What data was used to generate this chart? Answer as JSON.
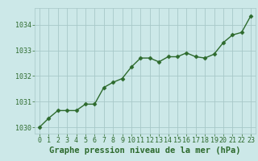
{
  "x": [
    0,
    1,
    2,
    3,
    4,
    5,
    6,
    7,
    8,
    9,
    10,
    11,
    12,
    13,
    14,
    15,
    16,
    17,
    18,
    19,
    20,
    21,
    22,
    23
  ],
  "y": [
    1030.0,
    1030.35,
    1030.65,
    1030.65,
    1030.65,
    1030.9,
    1030.9,
    1031.55,
    1031.75,
    1031.9,
    1032.35,
    1032.7,
    1032.7,
    1032.55,
    1032.75,
    1032.75,
    1032.9,
    1032.75,
    1032.7,
    1032.85,
    1033.3,
    1033.6,
    1033.7,
    1034.35
  ],
  "xlim": [
    -0.5,
    23.5
  ],
  "ylim": [
    1029.75,
    1034.65
  ],
  "yticks": [
    1030,
    1031,
    1032,
    1033,
    1034
  ],
  "xticks": [
    0,
    1,
    2,
    3,
    4,
    5,
    6,
    7,
    8,
    9,
    10,
    11,
    12,
    13,
    14,
    15,
    16,
    17,
    18,
    19,
    20,
    21,
    22,
    23
  ],
  "xlabel": "Graphe pression niveau de la mer (hPa)",
  "line_color": "#2d6a2d",
  "marker": "D",
  "marker_size": 2.5,
  "line_width": 1.0,
  "bg_color": "#cce8e8",
  "grid_color": "#a8c8c8",
  "tick_color": "#2d6a2d",
  "label_color": "#2d6a2d",
  "xlabel_fontsize": 7.5,
  "tick_fontsize": 6.0
}
